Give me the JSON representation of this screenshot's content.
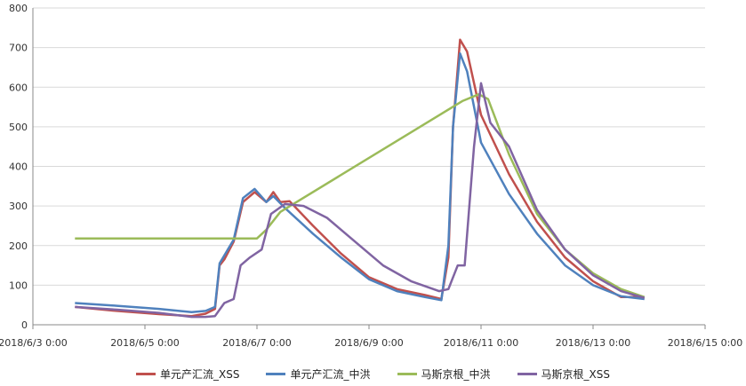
{
  "chart_data": {
    "type": "line",
    "title": "",
    "xlabel": "",
    "ylabel": "",
    "ylim": [
      0,
      800
    ],
    "y_ticks": [
      0,
      100,
      200,
      300,
      400,
      500,
      600,
      700,
      800
    ],
    "xlim": [
      "2018-06-03 00:00",
      "2018-06-15 00:00"
    ],
    "x_ticks": [
      "2018/6/3 0:00",
      "2018/6/5 0:00",
      "2018/6/7 0:00",
      "2018/6/9 0:00",
      "2018/6/11 0:00",
      "2018/6/13 0:00",
      "2018/6/15 0:00"
    ],
    "grid": "horizontal",
    "legend_position": "bottom",
    "series": [
      {
        "name": "单元产汇流_XSS",
        "color": "#C0504D",
        "points": [
          [
            "2018-06-03 18:00",
            45
          ],
          [
            "2018-06-04 12:00",
            35
          ],
          [
            "2018-06-05 06:00",
            27
          ],
          [
            "2018-06-05 20:00",
            22
          ],
          [
            "2018-06-06 02:00",
            28
          ],
          [
            "2018-06-06 06:00",
            40
          ],
          [
            "2018-06-06 08:00",
            150
          ],
          [
            "2018-06-06 10:00",
            165
          ],
          [
            "2018-06-06 14:00",
            210
          ],
          [
            "2018-06-06 18:00",
            310
          ],
          [
            "2018-06-06 23:00",
            335
          ],
          [
            "2018-06-07 04:00",
            310
          ],
          [
            "2018-06-07 07:00",
            335
          ],
          [
            "2018-06-07 10:00",
            310
          ],
          [
            "2018-06-07 14:00",
            312
          ],
          [
            "2018-06-08 00:00",
            250
          ],
          [
            "2018-06-08 12:00",
            180
          ],
          [
            "2018-06-09 00:00",
            120
          ],
          [
            "2018-06-09 12:00",
            90
          ],
          [
            "2018-06-10 00:00",
            75
          ],
          [
            "2018-06-10 07:00",
            65
          ],
          [
            "2018-06-10 10:00",
            170
          ],
          [
            "2018-06-10 12:00",
            500
          ],
          [
            "2018-06-10 15:00",
            720
          ],
          [
            "2018-06-10 18:00",
            690
          ],
          [
            "2018-06-11 00:00",
            530
          ],
          [
            "2018-06-11 12:00",
            380
          ],
          [
            "2018-06-12 00:00",
            260
          ],
          [
            "2018-06-12 12:00",
            170
          ],
          [
            "2018-06-13 00:00",
            110
          ],
          [
            "2018-06-13 12:00",
            70
          ],
          [
            "2018-06-13 22:00",
            70
          ]
        ]
      },
      {
        "name": "单元产汇流_中洪",
        "color": "#4F81BD",
        "points": [
          [
            "2018-06-03 18:00",
            55
          ],
          [
            "2018-06-04 12:00",
            48
          ],
          [
            "2018-06-05 06:00",
            40
          ],
          [
            "2018-06-05 20:00",
            32
          ],
          [
            "2018-06-06 02:00",
            35
          ],
          [
            "2018-06-06 06:00",
            45
          ],
          [
            "2018-06-06 08:00",
            155
          ],
          [
            "2018-06-06 10:00",
            175
          ],
          [
            "2018-06-06 14:00",
            215
          ],
          [
            "2018-06-06 18:00",
            320
          ],
          [
            "2018-06-06 23:00",
            343
          ],
          [
            "2018-06-07 04:00",
            310
          ],
          [
            "2018-06-07 07:00",
            325
          ],
          [
            "2018-06-07 12:00",
            295
          ],
          [
            "2018-06-08 00:00",
            230
          ],
          [
            "2018-06-08 12:00",
            170
          ],
          [
            "2018-06-09 00:00",
            115
          ],
          [
            "2018-06-09 12:00",
            85
          ],
          [
            "2018-06-10 00:00",
            70
          ],
          [
            "2018-06-10 07:00",
            62
          ],
          [
            "2018-06-10 10:00",
            200
          ],
          [
            "2018-06-10 12:00",
            500
          ],
          [
            "2018-06-10 15:00",
            685
          ],
          [
            "2018-06-10 18:00",
            640
          ],
          [
            "2018-06-11 00:00",
            460
          ],
          [
            "2018-06-11 12:00",
            330
          ],
          [
            "2018-06-12 00:00",
            230
          ],
          [
            "2018-06-12 12:00",
            150
          ],
          [
            "2018-06-13 00:00",
            100
          ],
          [
            "2018-06-13 12:00",
            72
          ],
          [
            "2018-06-13 22:00",
            65
          ]
        ]
      },
      {
        "name": "马斯京根_中洪",
        "color": "#9BBB59",
        "points": [
          [
            "2018-06-03 18:00",
            218
          ],
          [
            "2018-06-06 06:00",
            218
          ],
          [
            "2018-06-07 00:00",
            218
          ],
          [
            "2018-06-07 04:00",
            240
          ],
          [
            "2018-06-07 10:00",
            285
          ],
          [
            "2018-06-10 16:00",
            565
          ],
          [
            "2018-06-10 23:00",
            582
          ],
          [
            "2018-06-11 03:00",
            570
          ],
          [
            "2018-06-11 12:00",
            430
          ],
          [
            "2018-06-12 00:00",
            280
          ],
          [
            "2018-06-12 12:00",
            190
          ],
          [
            "2018-06-13 00:00",
            130
          ],
          [
            "2018-06-13 12:00",
            90
          ],
          [
            "2018-06-13 22:00",
            70
          ]
        ]
      },
      {
        "name": "马斯京根_XSS",
        "color": "#8064A2",
        "points": [
          [
            "2018-06-03 18:00",
            45
          ],
          [
            "2018-06-04 12:00",
            38
          ],
          [
            "2018-06-05 06:00",
            30
          ],
          [
            "2018-06-05 20:00",
            20
          ],
          [
            "2018-06-06 02:00",
            20
          ],
          [
            "2018-06-06 06:00",
            22
          ],
          [
            "2018-06-06 10:00",
            55
          ],
          [
            "2018-06-06 14:00",
            65
          ],
          [
            "2018-06-06 17:00",
            150
          ],
          [
            "2018-06-06 21:00",
            170
          ],
          [
            "2018-06-07 02:00",
            190
          ],
          [
            "2018-06-07 06:00",
            280
          ],
          [
            "2018-06-07 12:00",
            305
          ],
          [
            "2018-06-07 20:00",
            300
          ],
          [
            "2018-06-08 06:00",
            270
          ],
          [
            "2018-06-08 18:00",
            210
          ],
          [
            "2018-06-09 06:00",
            150
          ],
          [
            "2018-06-09 18:00",
            110
          ],
          [
            "2018-06-10 06:00",
            85
          ],
          [
            "2018-06-10 10:00",
            90
          ],
          [
            "2018-06-10 14:00",
            150
          ],
          [
            "2018-06-10 17:00",
            150
          ],
          [
            "2018-06-10 21:00",
            450
          ],
          [
            "2018-06-11 00:00",
            610
          ],
          [
            "2018-06-11 04:00",
            510
          ],
          [
            "2018-06-11 12:00",
            450
          ],
          [
            "2018-06-12 00:00",
            290
          ],
          [
            "2018-06-12 12:00",
            190
          ],
          [
            "2018-06-13 00:00",
            125
          ],
          [
            "2018-06-13 12:00",
            85
          ],
          [
            "2018-06-13 22:00",
            68
          ]
        ]
      }
    ]
  }
}
